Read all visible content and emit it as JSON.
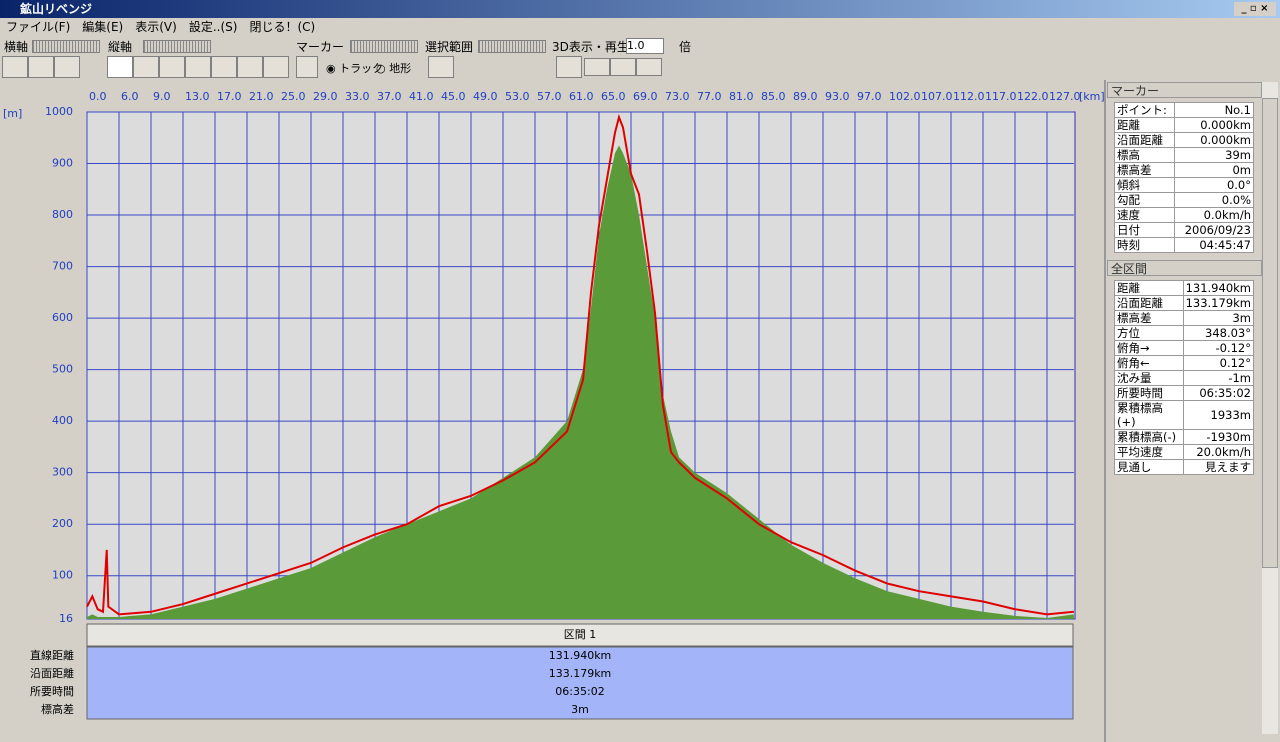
{
  "window": {
    "title": "鉱山リベンジ"
  },
  "menu": [
    "ファイル(F)",
    "編集(E)",
    "表示(V)",
    "設定..(S)",
    "閉じる！(C)"
  ],
  "toolbar": {
    "h_axis": "横軸",
    "v_axis": "縦軸",
    "marker": "マーカー",
    "track": "トラック",
    "terrain": "地形",
    "selection": "選択範囲",
    "play3d": "3D表示・再生",
    "speed": "1.0",
    "times": "倍"
  },
  "chart_data": {
    "type": "area-line",
    "x_unit": "[km]",
    "y_unit": "[m]",
    "xlim": [
      0,
      131.2
    ],
    "ylim": [
      16,
      1000
    ],
    "xticks": [
      {
        "value": 0,
        "label": "0.0"
      },
      {
        "value": 6,
        "label": "6.0"
      },
      {
        "value": 9,
        "label": "9.0"
      },
      {
        "value": 13,
        "label": "13.0"
      },
      {
        "value": 17,
        "label": "17.0"
      },
      {
        "value": 21,
        "label": "21.0"
      },
      {
        "value": 25,
        "label": "25.0"
      },
      {
        "value": 29,
        "label": "29.0"
      },
      {
        "value": 33,
        "label": "33.0"
      },
      {
        "value": 37,
        "label": "37.0"
      },
      {
        "value": 41,
        "label": "41.0"
      },
      {
        "value": 45,
        "label": "45.0"
      },
      {
        "value": 49,
        "label": "49.0"
      },
      {
        "value": 53,
        "label": "53.0"
      },
      {
        "value": 57,
        "label": "57.0"
      },
      {
        "value": 61,
        "label": "61.0"
      },
      {
        "value": 65,
        "label": "65.0"
      },
      {
        "value": 69,
        "label": "69.0"
      },
      {
        "value": 73,
        "label": "73.0"
      },
      {
        "value": 77,
        "label": "77.0"
      },
      {
        "value": 81,
        "label": "81.0"
      },
      {
        "value": 85,
        "label": "85.0"
      },
      {
        "value": 89,
        "label": "89.0"
      },
      {
        "value": 93,
        "label": "93.0"
      },
      {
        "value": 97,
        "label": "97.0"
      },
      {
        "value": 102,
        "label": "102.0"
      },
      {
        "value": 107,
        "label": "107.0"
      },
      {
        "value": 112,
        "label": "112.0"
      },
      {
        "value": 117,
        "label": "117.0"
      },
      {
        "value": 122,
        "label": "122.0"
      },
      {
        "value": 127,
        "label": "127.0"
      }
    ],
    "yticks": [
      16,
      100,
      200,
      300,
      400,
      500,
      600,
      700,
      800,
      900,
      1000
    ],
    "grid": true,
    "x": [
      0,
      1,
      2,
      3,
      3.7,
      4,
      6,
      9,
      13,
      17,
      21,
      25,
      29,
      33,
      37,
      41,
      45,
      49,
      53,
      57,
      61,
      63,
      64,
      65,
      66,
      67,
      67.5,
      68,
      69,
      70,
      71,
      72,
      73,
      74,
      75,
      77,
      81,
      85,
      89,
      93,
      97,
      102,
      107,
      112,
      117,
      122,
      127,
      131.2
    ],
    "series": [
      {
        "name": "terrain",
        "color": "#5a9a38",
        "values": [
          20,
          25,
          20,
          20,
          20,
          20,
          20,
          25,
          40,
          55,
          75,
          95,
          115,
          145,
          175,
          200,
          225,
          250,
          290,
          330,
          400,
          500,
          620,
          760,
          850,
          920,
          935,
          920,
          880,
          800,
          700,
          600,
          450,
          380,
          330,
          300,
          260,
          210,
          160,
          125,
          95,
          70,
          55,
          40,
          30,
          22,
          18,
          25
        ]
      },
      {
        "name": "track",
        "color": "#e00000",
        "values": [
          40,
          60,
          35,
          30,
          150,
          40,
          25,
          30,
          45,
          65,
          85,
          105,
          125,
          155,
          180,
          200,
          235,
          255,
          285,
          320,
          380,
          480,
          650,
          780,
          870,
          960,
          990,
          970,
          880,
          840,
          730,
          610,
          430,
          340,
          320,
          290,
          250,
          200,
          165,
          140,
          110,
          85,
          70,
          60,
          50,
          35,
          25,
          30
        ]
      }
    ]
  },
  "interval_table": {
    "header": "区間 1",
    "rows": [
      [
        "直線距離",
        "131.940km"
      ],
      [
        "沿面距離",
        "133.179km"
      ],
      [
        "所要時間",
        "06:35:02"
      ],
      [
        "標高差",
        "3m"
      ]
    ]
  },
  "marker_panel": {
    "title": "マーカー",
    "rows": [
      [
        "ポイント:",
        "No.1"
      ],
      [
        "距離",
        "0.000km"
      ],
      [
        "沿面距離",
        "0.000km"
      ],
      [
        "標高",
        "39m"
      ],
      [
        "標高差",
        "0m"
      ],
      [
        "傾斜",
        "0.0°"
      ],
      [
        "勾配",
        "0.0%"
      ],
      [
        "速度",
        "0.0km/h"
      ],
      [
        "日付",
        "2006/09/23"
      ],
      [
        "時刻",
        "04:45:47"
      ]
    ]
  },
  "section_panel": {
    "title": "全区間",
    "rows": [
      [
        "距離",
        "131.940km"
      ],
      [
        "沿面距離",
        "133.179km"
      ],
      [
        "標高差",
        "3m"
      ],
      [
        "方位",
        "348.03°"
      ],
      [
        "俯角→",
        "-0.12°"
      ],
      [
        "俯角←",
        "0.12°"
      ],
      [
        "沈み量",
        "-1m"
      ],
      [
        "所要時間",
        "06:35:02"
      ],
      [
        "累積標高(+)",
        "1933m"
      ],
      [
        "累積標高(-)",
        "-1930m"
      ],
      [
        "平均速度",
        "20.0km/h"
      ],
      [
        "見通し",
        "見えます"
      ]
    ]
  }
}
